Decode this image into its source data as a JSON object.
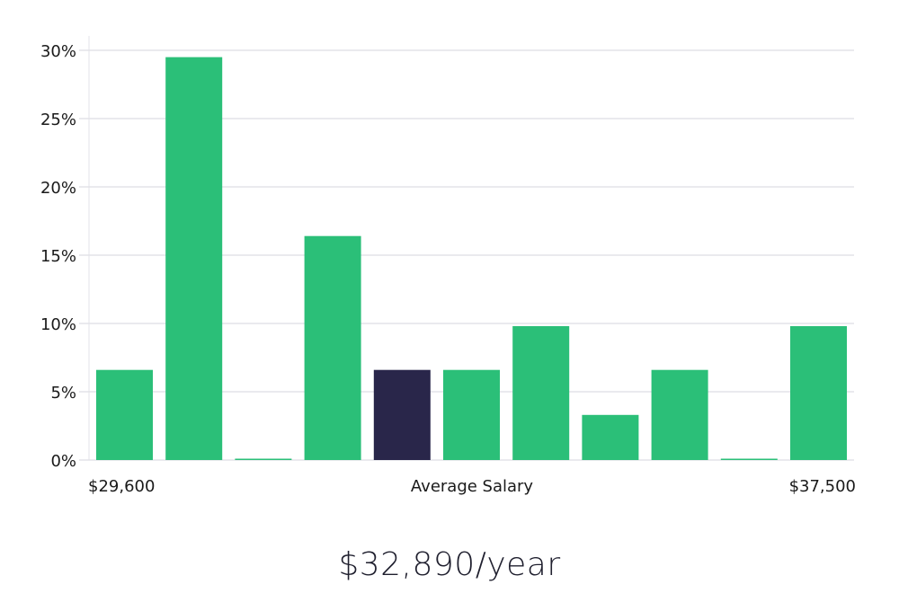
{
  "chart_data": {
    "type": "bar",
    "title": "",
    "xlabel": "Average Salary",
    "ylabel": "",
    "x_min_label": "$29,600",
    "x_max_label": "$37,500",
    "yticks": [
      "0%",
      "5%",
      "10%",
      "15%",
      "20%",
      "25%",
      "30%"
    ],
    "ylim": [
      0,
      31
    ],
    "values": [
      6.6,
      29.5,
      0.1,
      16.4,
      6.6,
      6.6,
      9.8,
      3.3,
      6.6,
      0.1,
      9.8
    ],
    "highlight_index": 4,
    "bar_color": "#2bbf78",
    "highlight_color": "#29264a",
    "grid": true
  },
  "summary": {
    "average_salary": "$32,890/year"
  }
}
